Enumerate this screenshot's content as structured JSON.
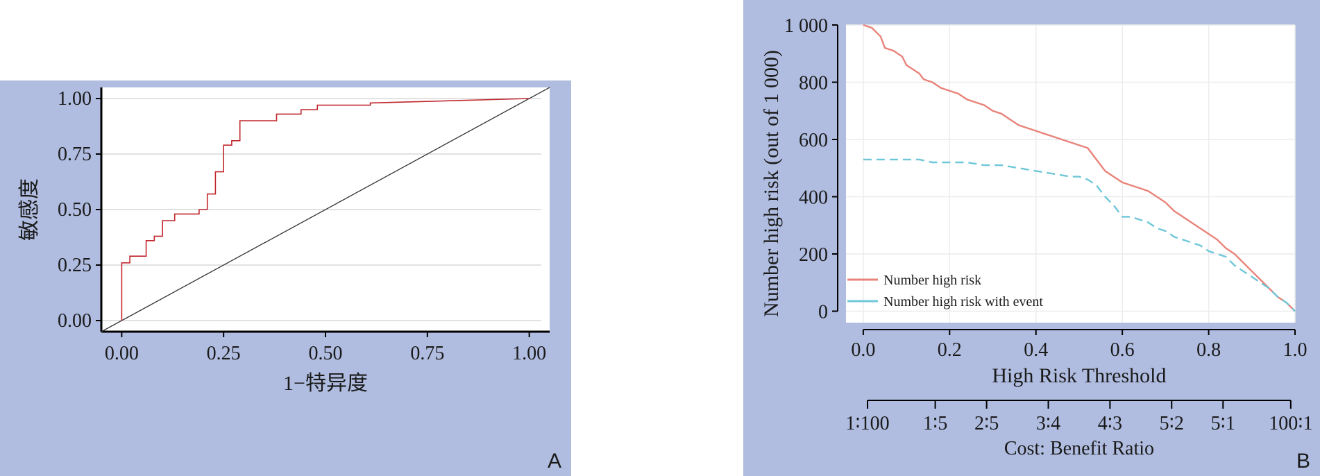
{
  "panel_labels": {
    "a": "A",
    "b": "B"
  },
  "chart_data": [
    {
      "type": "line",
      "xlabel": "1−特异度",
      "ylabel": "敏感度",
      "xlim": [
        -0.05,
        1.05
      ],
      "ylim": [
        -0.05,
        1.05
      ],
      "xticks": [
        "0.00",
        "0.25",
        "0.50",
        "0.75",
        "1.00"
      ],
      "xtick_values": [
        0,
        0.25,
        0.5,
        0.75,
        1.0
      ],
      "yticks": [
        "0.00",
        "0.25",
        "0.50",
        "0.75",
        "1.00"
      ],
      "ytick_values": [
        0,
        0.25,
        0.5,
        0.75,
        1.0
      ],
      "grid": "horizontal",
      "series": [
        {
          "color": "#c0272d",
          "x": [
            0,
            0,
            0.02,
            0.02,
            0.06,
            0.06,
            0.08,
            0.08,
            0.1,
            0.1,
            0.13,
            0.13,
            0.19,
            0.19,
            0.21,
            0.21,
            0.23,
            0.23,
            0.25,
            0.25,
            0.27,
            0.27,
            0.29,
            0.29,
            0.38,
            0.38,
            0.44,
            0.44,
            0.48,
            0.48,
            0.61,
            0.61,
            1.0
          ],
          "y": [
            0,
            0.26,
            0.26,
            0.29,
            0.29,
            0.36,
            0.36,
            0.38,
            0.38,
            0.45,
            0.45,
            0.48,
            0.48,
            0.5,
            0.5,
            0.57,
            0.57,
            0.67,
            0.67,
            0.79,
            0.79,
            0.81,
            0.81,
            0.9,
            0.9,
            0.93,
            0.93,
            0.95,
            0.95,
            0.97,
            0.97,
            0.98,
            1.0
          ]
        },
        {
          "color": "#333333",
          "x": [
            -0.05,
            1.05
          ],
          "y": [
            -0.05,
            1.05
          ]
        }
      ]
    },
    {
      "type": "line",
      "xlabel": "High Risk Threshold",
      "ylabel": "Number high risk (out of 1 000)",
      "xlim": [
        -0.04,
        1.0
      ],
      "ylim": [
        -40,
        1000
      ],
      "xticks": [
        "0.0",
        "0.2",
        "0.4",
        "0.6",
        "0.8",
        "1.0"
      ],
      "xtick_values": [
        0,
        0.2,
        0.4,
        0.6,
        0.8,
        1.0
      ],
      "yticks": [
        "0",
        "200",
        "400",
        "600",
        "800",
        "1 000"
      ],
      "ytick_values": [
        0,
        200,
        400,
        600,
        800,
        1000
      ],
      "secondary_axis": {
        "label": "Cost: Benefit Ratio",
        "ticks": [
          "1∶100",
          "1∶5",
          "2∶5",
          "3∶4",
          "4∶3",
          "5∶2",
          "5∶1",
          "100∶1"
        ],
        "tick_positions": [
          0.0099,
          0.1667,
          0.2857,
          0.4286,
          0.5714,
          0.7143,
          0.8333,
          0.9901
        ]
      },
      "grid": "both",
      "legend": {
        "position": "bottom-left"
      },
      "series": [
        {
          "name": "Number high risk",
          "color": "#e8837a",
          "dash": false,
          "x": [
            0,
            0.02,
            0.04,
            0.05,
            0.07,
            0.09,
            0.1,
            0.11,
            0.13,
            0.14,
            0.16,
            0.18,
            0.2,
            0.22,
            0.24,
            0.26,
            0.28,
            0.3,
            0.32,
            0.34,
            0.36,
            0.38,
            0.4,
            0.42,
            0.44,
            0.46,
            0.48,
            0.5,
            0.52,
            0.54,
            0.56,
            0.58,
            0.6,
            0.62,
            0.64,
            0.66,
            0.68,
            0.7,
            0.72,
            0.74,
            0.76,
            0.78,
            0.8,
            0.82,
            0.84,
            0.86,
            0.88,
            0.9,
            0.92,
            0.94,
            0.96,
            0.98,
            1.0
          ],
          "y": [
            1000,
            990,
            960,
            920,
            910,
            890,
            860,
            850,
            830,
            810,
            800,
            780,
            770,
            760,
            740,
            730,
            720,
            700,
            690,
            670,
            650,
            640,
            630,
            620,
            610,
            600,
            590,
            580,
            570,
            530,
            490,
            470,
            450,
            440,
            430,
            420,
            400,
            380,
            350,
            330,
            310,
            290,
            270,
            250,
            220,
            200,
            170,
            140,
            110,
            80,
            50,
            30,
            0
          ]
        },
        {
          "name": "Number high risk with event",
          "color": "#6ec7d8",
          "dash": true,
          "x": [
            0,
            0.05,
            0.1,
            0.13,
            0.16,
            0.2,
            0.24,
            0.28,
            0.32,
            0.36,
            0.4,
            0.44,
            0.48,
            0.5,
            0.52,
            0.54,
            0.56,
            0.58,
            0.6,
            0.62,
            0.64,
            0.66,
            0.68,
            0.7,
            0.72,
            0.74,
            0.76,
            0.78,
            0.8,
            0.82,
            0.84,
            0.86,
            0.88,
            0.9,
            0.92,
            0.94,
            0.96,
            0.98,
            1.0
          ],
          "y": [
            530,
            530,
            530,
            530,
            520,
            520,
            520,
            510,
            510,
            500,
            490,
            480,
            470,
            470,
            460,
            440,
            400,
            370,
            330,
            330,
            320,
            310,
            290,
            280,
            260,
            250,
            240,
            230,
            210,
            200,
            190,
            160,
            140,
            120,
            100,
            80,
            50,
            30,
            0
          ]
        }
      ]
    }
  ]
}
